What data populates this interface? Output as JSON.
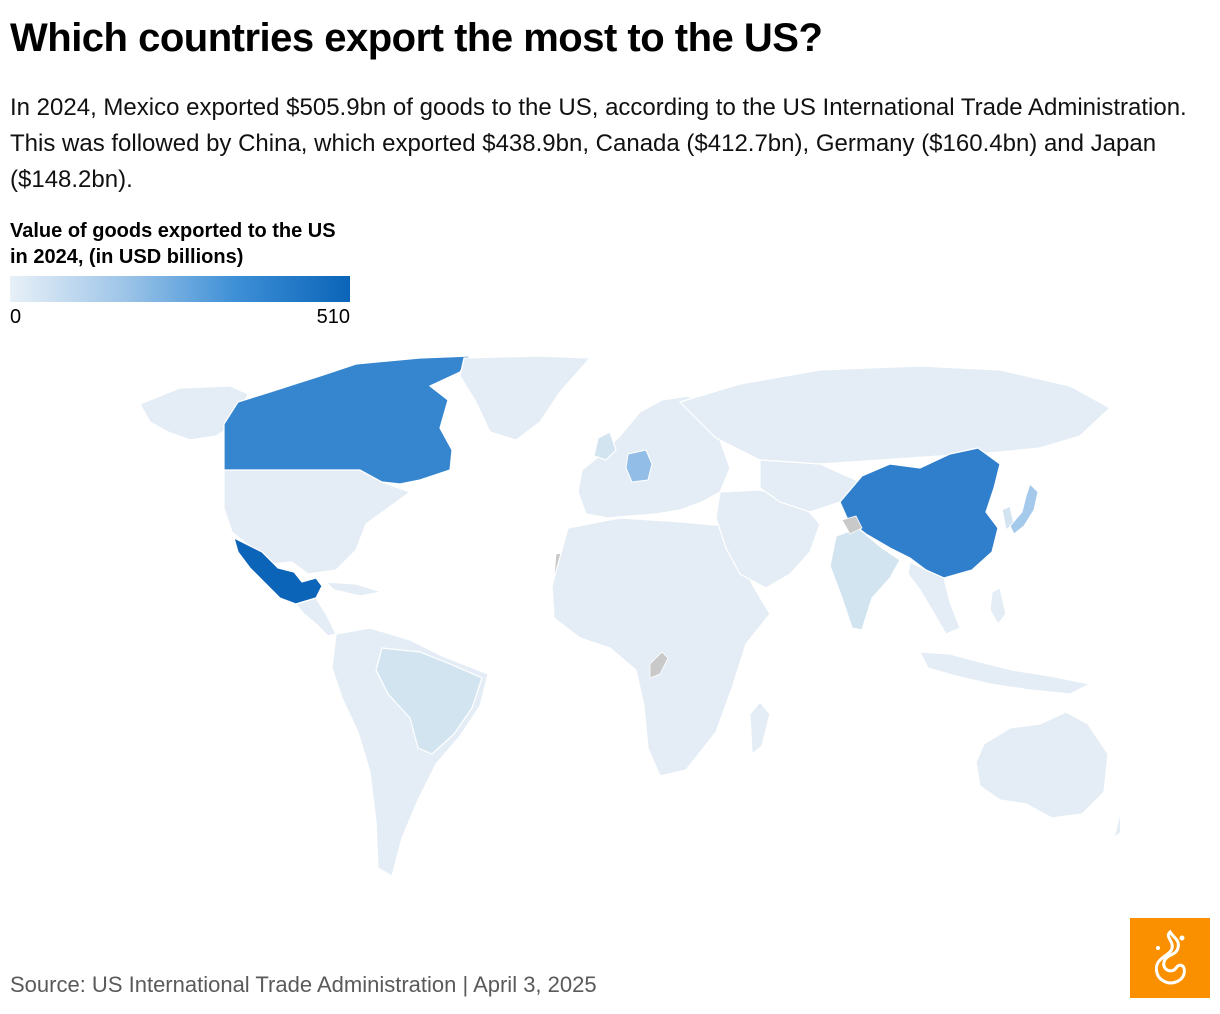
{
  "title": "Which countries export the most to the US?",
  "subtitle": "In 2024, Mexico exported $505.9bn of goods to the US, according to the US International Trade Administration. This was followed by China, which exported $438.9bn, Canada ($412.7bn), Germany ($160.4bn) and Japan ($148.2bn).",
  "legend": {
    "title": "Value of goods exported to the US in 2024, (in USD billions)",
    "min_label": "0",
    "max_label": "510",
    "color_low": "#e8f0f8",
    "color_high": "#0b64b8"
  },
  "map": {
    "highlighted_countries": [
      {
        "country": "Mexico",
        "value": 505.9,
        "color": "#0b64b8"
      },
      {
        "country": "China",
        "value": 438.9,
        "color": "#2f7fcc"
      },
      {
        "country": "Canada",
        "value": 412.7,
        "color": "#3586cf"
      },
      {
        "country": "Germany",
        "value": 160.4,
        "color": "#92bde6"
      },
      {
        "country": "Japan",
        "value": 148.2,
        "color": "#a5c9ea"
      }
    ],
    "base_land_color": "#e4edf5",
    "no_data_color": "#c9c9c9"
  },
  "footer": "Source: US International Trade Administration | April 3, 2025",
  "logo_icon": "al-jazeera-logo-icon",
  "logo_color": "#fa9000"
}
